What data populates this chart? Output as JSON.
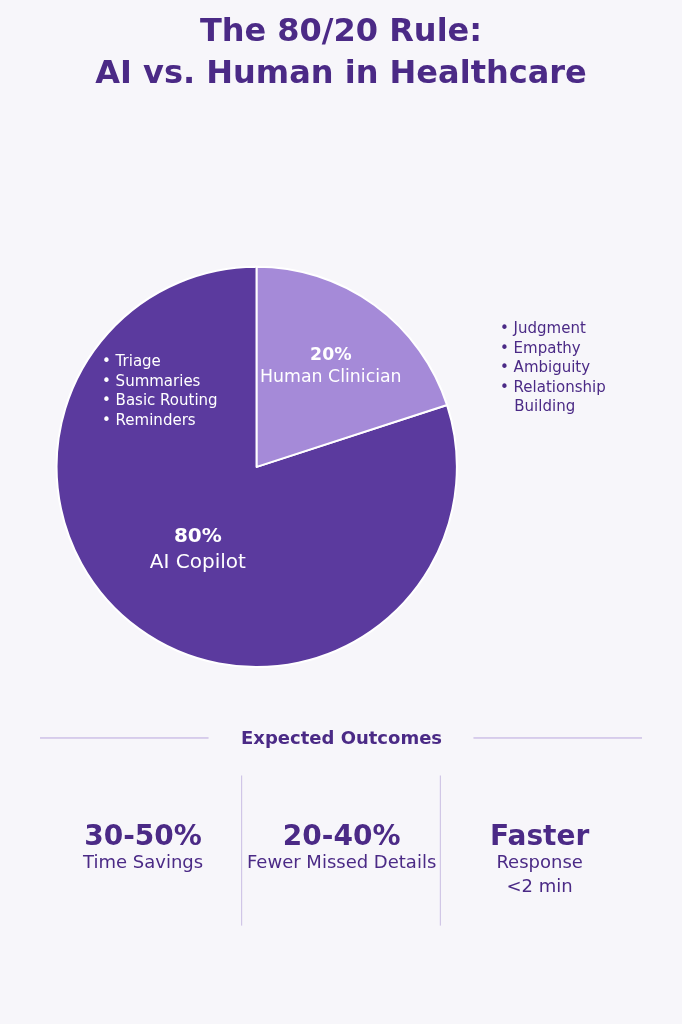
{
  "chart_data": {
    "type": "pie",
    "title": "The 80/20 Rule:\nAI vs. Human in Healthcare",
    "categories": [
      "AI Copilot",
      "Human Clinician"
    ],
    "values": [
      80,
      20
    ],
    "value_labels": [
      "80%",
      "20%"
    ],
    "colors": [
      "#5b3a9e",
      "#a58ad8"
    ],
    "annotations": [
      "• Triage\n• Summaries\n• Basic Routing\n• Reminders",
      "• Judgment\n• Empathy\n• Ambiguity\n• Relationship\n   Building",
      "Expected Outcomes",
      "30-50%\nTime Savings",
      "20-40%\nFewer Missed Details",
      "Faster\nResponse\n<2 min"
    ]
  }
}
